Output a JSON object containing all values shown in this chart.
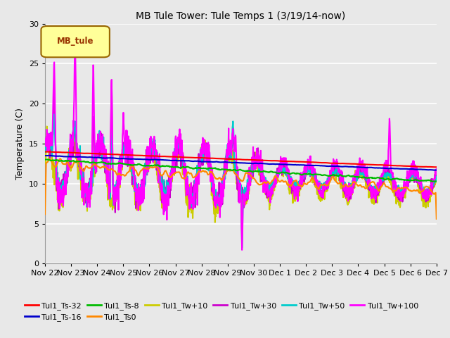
{
  "title": "MB Tule Tower: Tule Temps 1 (3/19/14-now)",
  "ylabel": "Temperature (C)",
  "ylim": [
    0,
    30
  ],
  "yticks": [
    0,
    5,
    10,
    15,
    20,
    25,
    30
  ],
  "xtick_labels": [
    "Nov 22",
    "Nov 23",
    "Nov 24",
    "Nov 25",
    "Nov 26",
    "Nov 27",
    "Nov 28",
    "Nov 29",
    "Nov 30",
    "Dec 1",
    "Dec 2",
    "Dec 3",
    "Dec 4",
    "Dec 5",
    "Dec 6",
    "Dec 7"
  ],
  "bg_color": "#e8e8e8",
  "series": {
    "Tul1_Ts-32": {
      "color": "#ff0000",
      "lw": 1.5
    },
    "Tul1_Ts-16": {
      "color": "#0000cc",
      "lw": 1.5
    },
    "Tul1_Ts-8": {
      "color": "#00bb00",
      "lw": 1.5
    },
    "Tul1_Ts0": {
      "color": "#ff8800",
      "lw": 1.5
    },
    "Tul1_Tw+10": {
      "color": "#cccc00",
      "lw": 1.5
    },
    "Tul1_Tw+30": {
      "color": "#cc00cc",
      "lw": 1.5
    },
    "Tul1_Tw+50": {
      "color": "#00cccc",
      "lw": 1.5
    },
    "Tul1_Tw+100": {
      "color": "#ff00ff",
      "lw": 1.5
    }
  },
  "legend_box_color": "#ffff99",
  "legend_box_border": "#996600",
  "legend_label": "MB_tule",
  "legend_label_color": "#993300"
}
